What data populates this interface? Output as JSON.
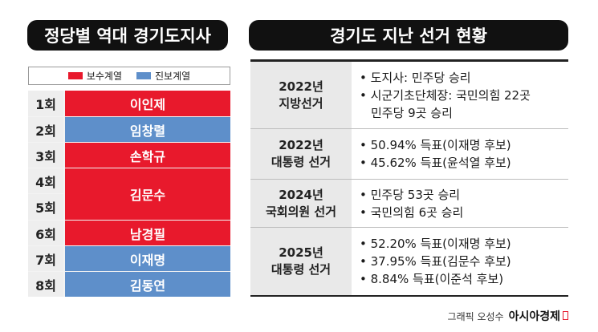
{
  "left_title": "정당별 역대 경기도지사",
  "right_title": "경기도 지난 선거 현황",
  "legend": [
    {
      "label": "보수계열",
      "color": "#e8192c"
    },
    {
      "label": "진보계열",
      "color": "#5e8fca"
    }
  ],
  "governors": [
    {
      "term": "1회",
      "name": "이인제",
      "camp": "보수계열"
    },
    {
      "term": "2회",
      "name": "임창렬",
      "camp": "진보계열"
    },
    {
      "term": "3회",
      "name": "손학규",
      "camp": "보수계열"
    },
    {
      "term": "4회",
      "name": "김문수",
      "camp": "보수계열"
    },
    {
      "term": "5회",
      "name": "",
      "camp": "보수계열"
    },
    {
      "term": "6회",
      "name": "남경필",
      "camp": "보수계열"
    },
    {
      "term": "7회",
      "name": "이재명",
      "camp": "진보계열"
    },
    {
      "term": "8회",
      "name": "김동연",
      "camp": "진보계열"
    }
  ],
  "elections": [
    {
      "year": "2022년",
      "type": "지방선거",
      "results": [
        "• 도지사: 민주당 승리",
        "• 시군기초단체장: 국민의힘 22곳",
        "  민주당 9곳 승리"
      ]
    },
    {
      "year": "2022년",
      "type": "대통령 선거",
      "results": [
        "• 50.94% 득표(이재명 후보)",
        "• 45.62% 득표(윤석열 후보)"
      ]
    },
    {
      "year": "2024년",
      "type": "국회의원 선거",
      "results": [
        "• 민주당 53곳 승리",
        "• 국민의힘 6곳 승리"
      ]
    },
    {
      "year": "2025년",
      "type": "대통령 선거",
      "results": [
        "• 52.20% 득표(이재명 후보)",
        "• 37.95% 득표(김문수 후보)",
        "• 8.84% 득표(이준석 후보)"
      ]
    }
  ],
  "credit": {
    "prefix": "그래픽 오성수",
    "brand": "아시아경제"
  }
}
